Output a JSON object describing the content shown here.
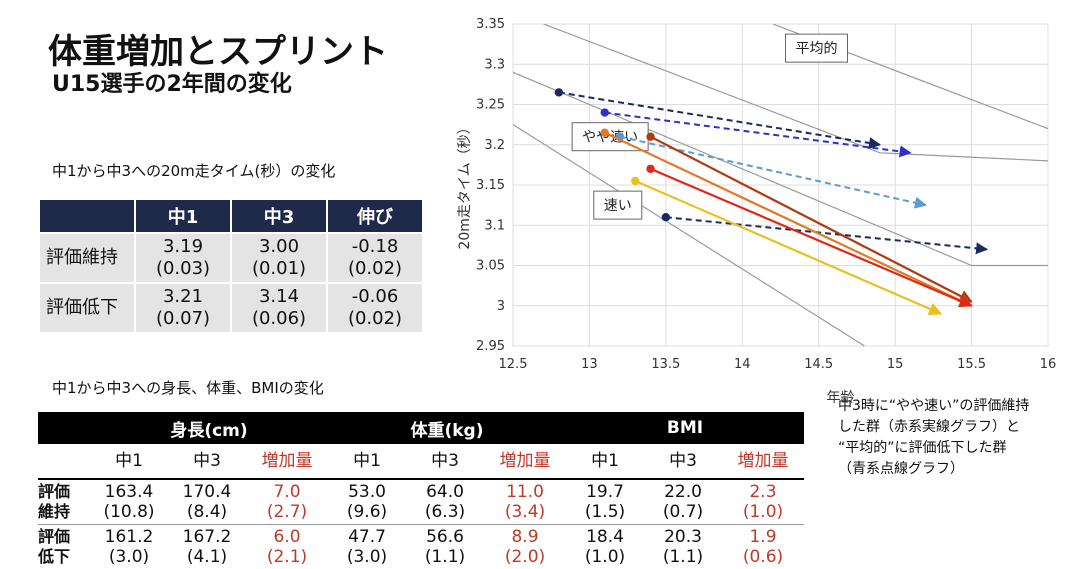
{
  "title": "体重増加とスプリント",
  "subtitle": "U15選手の2年間の変化",
  "sprint_caption": "中1から中3への20m走タイム(秒）の変化",
  "sprint_table": {
    "headers": [
      "中1",
      "中3",
      "伸び"
    ],
    "rows": [
      {
        "label": "評価維持",
        "cells": [
          [
            "3.19",
            "(0.03)"
          ],
          [
            "3.00",
            "(0.01)"
          ],
          [
            "-0.18",
            "(0.02)"
          ]
        ]
      },
      {
        "label": "評価低下",
        "cells": [
          [
            "3.21",
            "(0.07)"
          ],
          [
            "3.14",
            "(0.06)"
          ],
          [
            "-0.06",
            "(0.02)"
          ]
        ]
      }
    ]
  },
  "body_caption": "中1から中3への身長、体重、BMIの変化",
  "body_table": {
    "groups": [
      "身長(cm)",
      "体重(kg)",
      "BMI"
    ],
    "subheaders": [
      "中1",
      "中3",
      "増加量",
      "中1",
      "中3",
      "増加量",
      "中1",
      "中3",
      "増加量"
    ],
    "rows": [
      {
        "label": [
          "評価",
          "維持"
        ],
        "cells": [
          [
            "163.4",
            "(10.8)"
          ],
          [
            "170.4",
            "(8.4)"
          ],
          [
            "7.0",
            "(2.7)"
          ],
          [
            "53.0",
            "(9.6)"
          ],
          [
            "64.0",
            "(6.3)"
          ],
          [
            "11.0",
            "(3.4)"
          ],
          [
            "19.7",
            "(1.5)"
          ],
          [
            "22.0",
            "(0.7)"
          ],
          [
            "2.3",
            "(1.0)"
          ]
        ]
      },
      {
        "label": [
          "評価",
          "低下"
        ],
        "cells": [
          [
            "161.2",
            "(3.0)"
          ],
          [
            "167.2",
            "(4.1)"
          ],
          [
            "6.0",
            "(2.1)"
          ],
          [
            "47.7",
            "(3.0)"
          ],
          [
            "56.6",
            "(1.1)"
          ],
          [
            "8.9",
            "(2.0)"
          ],
          [
            "18.4",
            "(1.0)"
          ],
          [
            "20.3",
            "(1.1)"
          ],
          [
            "1.9",
            "(0.6)"
          ]
        ]
      }
    ]
  },
  "note": [
    "中3時に“やや速い”の評価維持",
    "した群（赤系実線グラフ）と",
    "“平均的”に評価低下した群",
    "（青系点線グラフ）"
  ],
  "colors": {
    "header_navy": "#1f2a4a",
    "red_text": "#c0392b",
    "navy": "#1b2a5e",
    "blue": "#3030c8",
    "light_blue": "#5a9bd5",
    "dark_red": "#b03a10",
    "red": "#e02818",
    "orange": "#e07a28",
    "yellow": "#e8c020"
  },
  "chart_data": {
    "type": "scatter",
    "xlabel": "年齢",
    "ylabel": "20m走タイム（秒）",
    "xlim": [
      12.5,
      16
    ],
    "ylim": [
      2.95,
      3.35
    ],
    "xticks": [
      "12.5",
      "13",
      "13.5",
      "14",
      "14.5",
      "15",
      "15.5",
      "16"
    ],
    "yticks": [
      "2.95",
      "3",
      "3.05",
      "3.1",
      "3.15",
      "3.2",
      "3.25",
      "3.3",
      "3.35"
    ],
    "region_labels": [
      {
        "text": "平均的",
        "x": 14.25,
        "y": 3.32
      },
      {
        "text": "やや速い",
        "x": 12.9,
        "y": 3.21
      },
      {
        "text": "速い",
        "x": 12.95,
        "y": 3.125
      }
    ],
    "boundaries": [
      {
        "points": [
          [
            12.7,
            3.35
          ],
          [
            14.9,
            3.19
          ],
          [
            16,
            3.18
          ]
        ]
      },
      {
        "points": [
          [
            14.2,
            3.35
          ],
          [
            16,
            3.22
          ]
        ]
      },
      {
        "points": [
          [
            12.5,
            3.29
          ],
          [
            15.5,
            3.05
          ],
          [
            16,
            3.05
          ]
        ]
      },
      {
        "points": [
          [
            12.5,
            3.225
          ],
          [
            14.8,
            2.95
          ]
        ]
      }
    ],
    "series": [
      {
        "name": "navy-1",
        "group": "評価低下",
        "color": "navy",
        "dashed": true,
        "start": [
          12.8,
          3.265
        ],
        "end": [
          14.9,
          3.2
        ]
      },
      {
        "name": "blue-1",
        "group": "評価低下",
        "color": "blue",
        "dashed": true,
        "start": [
          13.1,
          3.24
        ],
        "end": [
          15.1,
          3.19
        ]
      },
      {
        "name": "lightblue-1",
        "group": "評価低下",
        "color": "light_blue",
        "dashed": true,
        "start": [
          13.2,
          3.21
        ],
        "end": [
          15.2,
          3.125
        ]
      },
      {
        "name": "navy-2",
        "group": "評価低下",
        "color": "navy",
        "dashed": true,
        "start": [
          13.5,
          3.11
        ],
        "end": [
          15.6,
          3.07
        ]
      },
      {
        "name": "darkred-1",
        "group": "評価維持",
        "color": "dark_red",
        "dashed": false,
        "start": [
          13.4,
          3.21
        ],
        "end": [
          15.5,
          3.005
        ]
      },
      {
        "name": "orange-1",
        "group": "評価維持",
        "color": "orange",
        "dashed": false,
        "start": [
          13.1,
          3.215
        ],
        "end": [
          15.5,
          3.0
        ]
      },
      {
        "name": "red-1",
        "group": "評価維持",
        "color": "red",
        "dashed": false,
        "start": [
          13.4,
          3.17
        ],
        "end": [
          15.5,
          3.0
        ]
      },
      {
        "name": "yellow-1",
        "group": "評価維持",
        "color": "yellow",
        "dashed": false,
        "start": [
          13.3,
          3.155
        ],
        "end": [
          15.3,
          2.99
        ]
      }
    ]
  }
}
